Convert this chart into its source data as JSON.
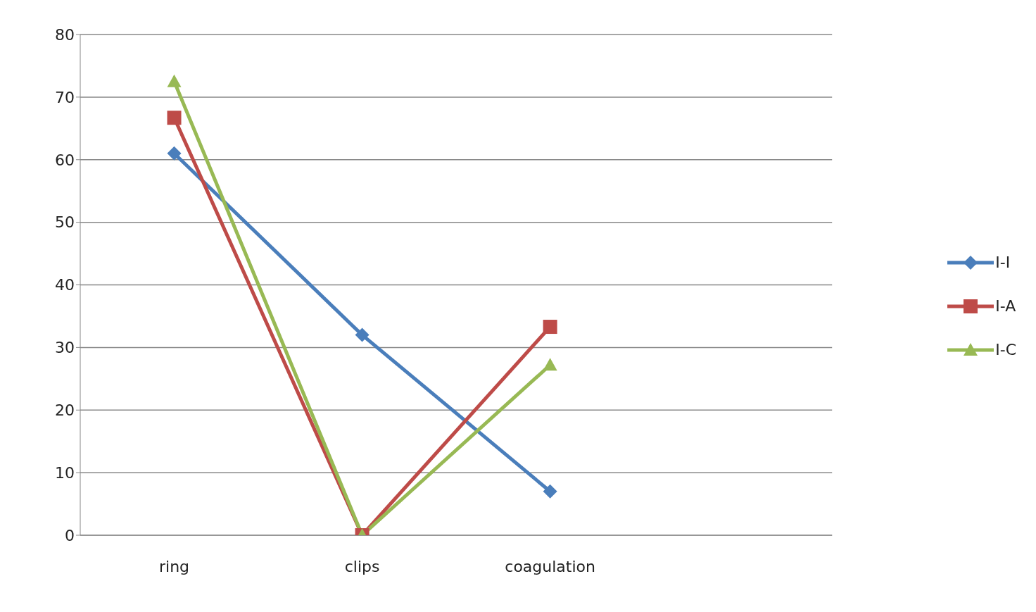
{
  "chart_data": {
    "type": "line",
    "categories": [
      "ring",
      "clips",
      "coagulation",
      null
    ],
    "series": [
      {
        "name": "I-I",
        "color": "#4a7ebb",
        "marker": "diamond",
        "values": [
          61,
          32,
          7,
          null
        ]
      },
      {
        "name": "I-A",
        "color": "#be4b48",
        "marker": "square",
        "values": [
          66.7,
          0,
          33.3,
          null
        ]
      },
      {
        "name": "I-C",
        "color": "#98b954",
        "marker": "triangle",
        "values": [
          72.5,
          0,
          27.2,
          null
        ]
      }
    ],
    "ylim": [
      0,
      80
    ],
    "yticks": [
      0,
      10,
      20,
      30,
      40,
      50,
      60,
      70,
      80
    ],
    "grid": "y",
    "legend": "right",
    "line_style": "solid"
  }
}
